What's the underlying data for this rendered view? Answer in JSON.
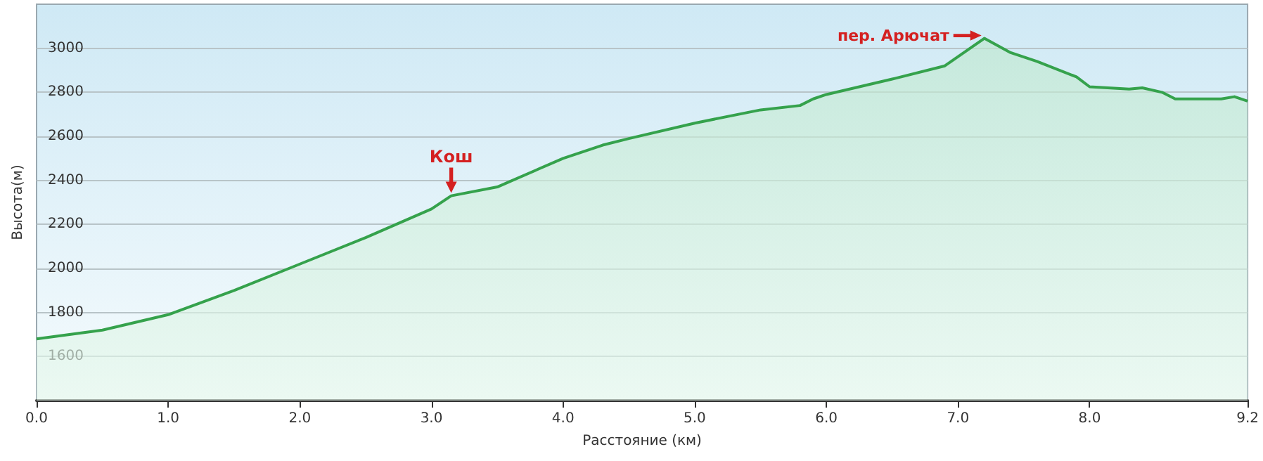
{
  "chart_data": {
    "type": "area",
    "xlabel": "Расстояние (км)",
    "ylabel": "Высота(м)",
    "x": [
      0,
      0.5,
      1.0,
      1.5,
      2.0,
      2.5,
      3.0,
      3.15,
      3.5,
      4.0,
      4.3,
      4.5,
      5.0,
      5.5,
      5.8,
      5.9,
      6.0,
      6.5,
      6.9,
      7.2,
      7.4,
      7.6,
      7.9,
      8.0,
      8.3,
      8.4,
      8.55,
      8.65,
      9.0,
      9.1,
      9.2
    ],
    "series": [
      {
        "color": "#35a24c",
        "values": [
          1680,
          1720,
          1790,
          1900,
          2020,
          2140,
          2270,
          2330,
          2370,
          2500,
          2560,
          2590,
          2660,
          2720,
          2740,
          2770,
          2790,
          2860,
          2920,
          3045,
          2980,
          2940,
          2870,
          2825,
          2815,
          2820,
          2800,
          2770,
          2770,
          2780,
          2760
        ]
      }
    ],
    "xlim": [
      0,
      9.2
    ],
    "xticks": [
      {
        "value": 0,
        "label": "0.0"
      },
      {
        "value": 1,
        "label": "1.0"
      },
      {
        "value": 2,
        "label": "2.0"
      },
      {
        "value": 3,
        "label": "3.0"
      },
      {
        "value": 4,
        "label": "4.0"
      },
      {
        "value": 5,
        "label": "5.0"
      },
      {
        "value": 6,
        "label": "6.0"
      },
      {
        "value": 7,
        "label": "7.0"
      },
      {
        "value": 8,
        "label": "8.0"
      },
      9.2
    ],
    "ylim": [
      1400,
      3200
    ],
    "yticks": [
      1600,
      1800,
      2000,
      2200,
      2400,
      2600,
      2800,
      3000
    ],
    "grid": "y",
    "marker": "none",
    "annotations": [
      {
        "text": "Кош",
        "x": 3.15,
        "y": 2330
      },
      {
        "text": "пер. Арючат",
        "x": 7.2,
        "y": 3045
      }
    ]
  }
}
